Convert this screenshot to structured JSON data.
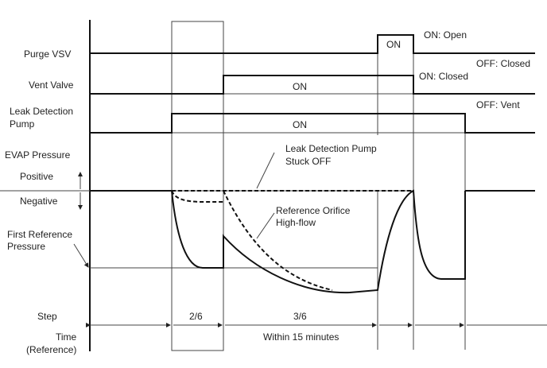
{
  "signals": {
    "purge_vsv": "Purge VSV",
    "vent_valve": "Vent Valve",
    "ldp_line1": "Leak Detection",
    "ldp_line2": "Pump",
    "evap": "EVAP Pressure",
    "positive": "Positive",
    "negative": "Negative",
    "first_ref_line1": "First Reference",
    "first_ref_line2": "Pressure",
    "step": "Step",
    "time": "Time",
    "reference": "(Reference)"
  },
  "states": {
    "purge_on": "ON",
    "on_open": "ON: Open",
    "off_closed": "OFF: Closed",
    "vent_on": "ON",
    "on_closed": "ON: Closed",
    "off_vent": "OFF: Vent",
    "ldp_on": "ON"
  },
  "annotations": {
    "stuck_line1": "Leak Detection Pump",
    "stuck_line2": "Stuck OFF",
    "orifice_line1": "Reference Orifice",
    "orifice_line2": "High-flow"
  },
  "steps": {
    "step2": "2/6",
    "step3": "3/6",
    "time_note": "Within 15 minutes"
  }
}
